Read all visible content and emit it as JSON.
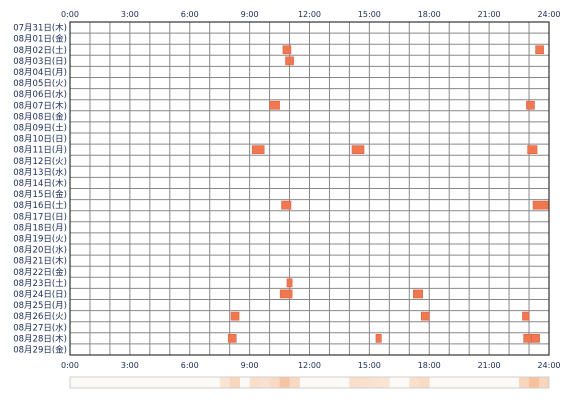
{
  "chart_data": {
    "type": "heatmap",
    "x_ticks": [
      "0:00",
      "3:00",
      "6:00",
      "9:00",
      "12:00",
      "15:00",
      "18:00",
      "21:00",
      "24:00"
    ],
    "xlim": [
      0,
      24
    ],
    "x_unit": "hour",
    "grid": true,
    "rows": [
      "07月31日(木)",
      "08月01日(金)",
      "08月02日(土)",
      "08月03日(日)",
      "08月04日(月)",
      "08月05日(火)",
      "08月06日(水)",
      "08月07日(木)",
      "08月08日(金)",
      "08月09日(土)",
      "08月10日(日)",
      "08月11日(月)",
      "08月12日(火)",
      "08月13日(水)",
      "08月14日(木)",
      "08月15日(金)",
      "08月16日(土)",
      "08月17日(日)",
      "08月18日(月)",
      "08月19日(火)",
      "08月20日(水)",
      "08月21日(木)",
      "08月22日(金)",
      "08月23日(土)",
      "08月24日(日)",
      "08月25日(月)",
      "08月26日(火)",
      "08月27日(水)",
      "08月28日(木)",
      "08月29日(金)"
    ],
    "events": [
      {
        "row": "08月02日(土)",
        "start": 10.67,
        "end": 11.07
      },
      {
        "row": "08月02日(土)",
        "start": 23.33,
        "end": 23.73
      },
      {
        "row": "08月03日(日)",
        "start": 10.8,
        "end": 11.2
      },
      {
        "row": "08月07日(木)",
        "start": 10.0,
        "end": 10.5
      },
      {
        "row": "08月07日(木)",
        "start": 22.87,
        "end": 23.27
      },
      {
        "row": "08月11日(月)",
        "start": 9.13,
        "end": 9.73
      },
      {
        "row": "08月11日(月)",
        "start": 14.13,
        "end": 14.73
      },
      {
        "row": "08月11日(月)",
        "start": 22.93,
        "end": 23.4
      },
      {
        "row": "08月16日(土)",
        "start": 10.6,
        "end": 11.07
      },
      {
        "row": "08月16日(土)",
        "start": 23.2,
        "end": 24.0
      },
      {
        "row": "08月23日(土)",
        "start": 10.87,
        "end": 11.13
      },
      {
        "row": "08月24日(日)",
        "start": 10.53,
        "end": 11.13
      },
      {
        "row": "08月24日(日)",
        "start": 17.2,
        "end": 17.67
      },
      {
        "row": "08月26日(火)",
        "start": 8.07,
        "end": 8.47
      },
      {
        "row": "08月26日(火)",
        "start": 17.6,
        "end": 18.0
      },
      {
        "row": "08月26日(火)",
        "start": 22.67,
        "end": 23.0
      },
      {
        "row": "08月28日(木)",
        "start": 7.93,
        "end": 8.33
      },
      {
        "row": "08月28日(木)",
        "start": 15.33,
        "end": 15.6
      },
      {
        "row": "08月28日(木)",
        "start": 22.73,
        "end": 23.13
      },
      {
        "row": "08月28日(木)",
        "start": 23.13,
        "end": 23.53
      }
    ],
    "colors": {
      "event": "#f07850",
      "event_border": "#e06040",
      "grid": "#888888",
      "frame": "#333333",
      "tick_text": "#1a2a55",
      "density_base": "#fcfaf7",
      "density_max": "#f6c29c"
    }
  }
}
